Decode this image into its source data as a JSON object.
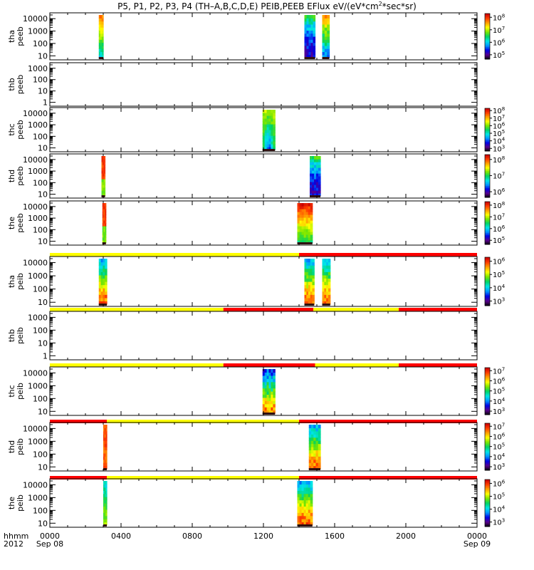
{
  "figure": {
    "title_pre": "P5, P1, P2, P3, P4 (TH–A,B,C,D,E) PEIB,PEEB EFlux eV/(eV*cm",
    "title_sup": "2",
    "title_post": "*sec*sr)"
  },
  "time_axis": {
    "corner_labels": [
      "hhmm",
      "2012"
    ],
    "ticks": [
      {
        "hours": 0,
        "label": "0000",
        "date": "Sep 08"
      },
      {
        "hours": 4,
        "label": "0400"
      },
      {
        "hours": 8,
        "label": "0800"
      },
      {
        "hours": 12,
        "label": "1200"
      },
      {
        "hours": 16,
        "label": "1600"
      },
      {
        "hours": 20,
        "label": "2000"
      },
      {
        "hours": 24,
        "label": "0000",
        "date": "Sep 09"
      }
    ]
  },
  "colors": {
    "flag_red": "#ff0000",
    "flag_yellow": "#ffff00"
  },
  "chart_data": [
    {
      "type": "heatmap",
      "ylabel": [
        "tha",
        "peeb"
      ],
      "ylog": true,
      "yticks": [
        10,
        100,
        1000,
        10000
      ],
      "colorbar": {
        "ticks": [
          5,
          6,
          7,
          8
        ]
      },
      "blocks": [
        {
          "start": 2.75,
          "end": 3.0,
          "pattern": "ramp"
        },
        {
          "start": 14.3,
          "end": 14.9,
          "pattern": "purple"
        },
        {
          "start": 15.3,
          "end": 15.7,
          "pattern": "mixed"
        }
      ]
    },
    {
      "type": "heatmap",
      "ylabel": [
        "thb",
        "peeb"
      ],
      "ylog": true,
      "yticks": [
        1,
        10,
        100,
        1000
      ],
      "colorbar": null,
      "blocks": []
    },
    {
      "type": "heatmap",
      "ylabel": [
        "thc",
        "peeb"
      ],
      "ylog": true,
      "yticks": [
        10,
        100,
        1000,
        10000
      ],
      "colorbar": {
        "ticks": [
          3,
          4,
          5,
          6,
          7,
          8
        ]
      },
      "blocks": [
        {
          "start": 11.95,
          "end": 12.65,
          "pattern": "funnel"
        }
      ]
    },
    {
      "type": "heatmap",
      "ylabel": [
        "thd",
        "peeb"
      ],
      "ylog": true,
      "yticks": [
        10,
        100,
        1000,
        10000
      ],
      "colorbar": {
        "ticks": [
          6,
          7,
          8
        ]
      },
      "blocks": [
        {
          "start": 2.9,
          "end": 3.1,
          "pattern": "redgreen"
        },
        {
          "start": 14.6,
          "end": 15.2,
          "pattern": "purple"
        }
      ]
    },
    {
      "type": "heatmap",
      "ylabel": [
        "the",
        "peeb"
      ],
      "ylog": true,
      "yticks": [
        10,
        100,
        1000,
        10000
      ],
      "colorbar": {
        "ticks": [
          5,
          6,
          7,
          8
        ]
      },
      "blocks": [
        {
          "start": 2.95,
          "end": 3.15,
          "pattern": "redgreen"
        },
        {
          "start": 13.9,
          "end": 14.75,
          "pattern": "hot"
        }
      ]
    },
    {
      "type": "heatmap",
      "ylabel": [
        "tha",
        "peib"
      ],
      "ylog": true,
      "yticks": [
        10,
        100,
        1000,
        10000
      ],
      "colorbar": {
        "ticks": [
          3,
          4,
          5,
          6
        ]
      },
      "flag": [
        {
          "start": 0,
          "end": 14.0,
          "color": "red"
        },
        {
          "start": 14.0,
          "end": 24,
          "color": "red"
        }
      ],
      "flag_top": [
        {
          "start": 0,
          "end": 14.0,
          "color": "red"
        },
        {
          "start": 0.0,
          "end": 14.0,
          "color": "yellow"
        },
        {
          "start": 14.0,
          "end": 24,
          "color": "red"
        }
      ],
      "blocks": [
        {
          "start": 2.75,
          "end": 3.2,
          "pattern": "ion"
        },
        {
          "start": 14.3,
          "end": 14.85,
          "pattern": "ion"
        },
        {
          "start": 15.3,
          "end": 15.75,
          "pattern": "ion"
        }
      ]
    },
    {
      "type": "heatmap",
      "ylabel": [
        "thb",
        "peib"
      ],
      "ylog": true,
      "yticks": [
        1,
        10,
        100,
        1000
      ],
      "colorbar": null,
      "flag_top": [
        {
          "start": 0,
          "end": 9.75,
          "color": "yellow"
        },
        {
          "start": 9.75,
          "end": 14.8,
          "color": "red"
        },
        {
          "start": 14.8,
          "end": 19.6,
          "color": "yellow"
        },
        {
          "start": 19.6,
          "end": 24,
          "color": "red"
        }
      ],
      "blocks": []
    },
    {
      "type": "heatmap",
      "ylabel": [
        "thc",
        "peib"
      ],
      "ylog": true,
      "yticks": [
        10,
        100,
        1000,
        10000
      ],
      "colorbar": {
        "ticks": [
          3,
          4,
          5,
          6,
          7
        ]
      },
      "flag_top": [
        {
          "start": 0,
          "end": 9.75,
          "color": "yellow"
        },
        {
          "start": 9.75,
          "end": 14.9,
          "color": "red"
        },
        {
          "start": 14.9,
          "end": 19.6,
          "color": "yellow"
        },
        {
          "start": 19.6,
          "end": 24,
          "color": "red"
        }
      ],
      "blocks": [
        {
          "start": 11.95,
          "end": 12.65,
          "pattern": "ion2"
        }
      ]
    },
    {
      "type": "heatmap",
      "ylabel": [
        "thd",
        "peib"
      ],
      "ylog": true,
      "yticks": [
        10,
        100,
        1000,
        10000
      ],
      "colorbar": {
        "ticks": [
          3,
          4,
          5,
          6,
          7
        ]
      },
      "flag_top": [
        {
          "start": 0,
          "end": 3.2,
          "color": "red"
        },
        {
          "start": 3.2,
          "end": 14.0,
          "color": "yellow"
        },
        {
          "start": 14.0,
          "end": 24,
          "color": "red"
        }
      ],
      "blocks": [
        {
          "start": 3.0,
          "end": 3.2,
          "pattern": "redonly"
        },
        {
          "start": 14.55,
          "end": 15.2,
          "pattern": "ion"
        }
      ]
    },
    {
      "type": "heatmap",
      "ylabel": [
        "the",
        "peib"
      ],
      "ylog": true,
      "yticks": [
        10,
        100,
        1000,
        10000
      ],
      "colorbar": {
        "ticks": [
          3,
          4,
          5,
          6
        ]
      },
      "flag_top": [
        {
          "start": 0,
          "end": 3.2,
          "color": "red"
        },
        {
          "start": 3.2,
          "end": 14.0,
          "color": "yellow"
        },
        {
          "start": 14.0,
          "end": 24,
          "color": "red"
        }
      ],
      "blocks": [
        {
          "start": 3.0,
          "end": 3.2,
          "pattern": "lowcyan"
        },
        {
          "start": 13.9,
          "end": 14.75,
          "pattern": "ion"
        }
      ]
    }
  ]
}
